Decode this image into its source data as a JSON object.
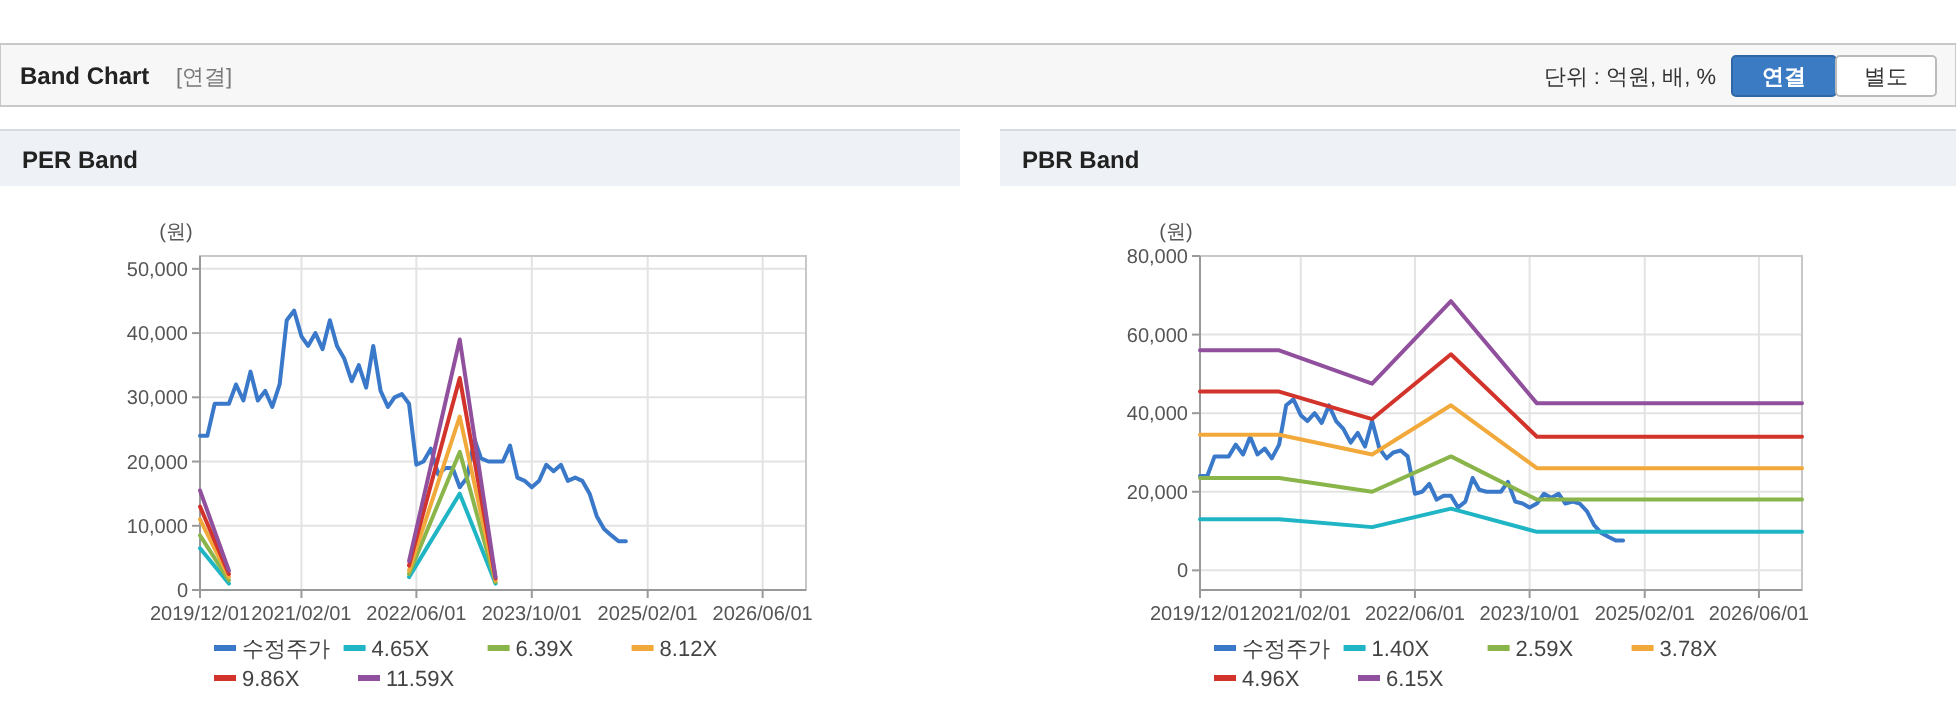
{
  "chart_data": [
    {
      "type": "line",
      "title": "PER Band",
      "ylabel": "(원)",
      "annotations": [
        "Band Chart",
        "[연결]",
        "단위 : 억원, 배, %",
        "연결",
        "별도"
      ],
      "xlim": [
        "2019-12-01",
        "2026-12-01"
      ],
      "xticks": [
        {
          "value": "2019-12-01",
          "label": "2019/12/01"
        },
        {
          "value": "2021-02-01",
          "label": "2021/02/01"
        },
        {
          "value": "2022-06-01",
          "label": "2022/06/01"
        },
        {
          "value": "2023-10-01",
          "label": "2023/10/01"
        },
        {
          "value": "2025-02-01",
          "label": "2025/02/01"
        },
        {
          "value": "2026-06-01",
          "label": "2026/06/01"
        }
      ],
      "ylim": [
        0,
        52000
      ],
      "yticks": [
        {
          "value": 0,
          "label": "0"
        },
        {
          "value": 10000,
          "label": "10,000"
        },
        {
          "value": 20000,
          "label": "20,000"
        },
        {
          "value": 30000,
          "label": "30,000"
        },
        {
          "value": 40000,
          "label": "40,000"
        },
        {
          "value": 50000,
          "label": "50,000"
        }
      ],
      "grid": true,
      "legend": "bottom",
      "marker": "none",
      "line_style": "solid",
      "series": [
        {
          "name": "수정주가",
          "color": "#3a78c9",
          "x": [
            "2019-12",
            "2020-01",
            "2020-02",
            "2020-03",
            "2020-04",
            "2020-05",
            "2020-06",
            "2020-07",
            "2020-08",
            "2020-09",
            "2020-10",
            "2020-11",
            "2020-12",
            "2021-01",
            "2021-02",
            "2021-03",
            "2021-04",
            "2021-05",
            "2021-06",
            "2021-07",
            "2021-08",
            "2021-09",
            "2021-10",
            "2021-11",
            "2021-12",
            "2022-01",
            "2022-02",
            "2022-03",
            "2022-04",
            "2022-05",
            "2022-06",
            "2022-07",
            "2022-08",
            "2022-09",
            "2022-10",
            "2022-11",
            "2022-12",
            "2023-01",
            "2023-02",
            "2023-03",
            "2023-04",
            "2023-05",
            "2023-06",
            "2023-07",
            "2023-08",
            "2023-09",
            "2023-10",
            "2023-11",
            "2023-12",
            "2024-01",
            "2024-02",
            "2024-03",
            "2024-04",
            "2024-05",
            "2024-06",
            "2024-07",
            "2024-08",
            "2024-09",
            "2024-10",
            "2024-11"
          ],
          "values": [
            24000,
            24000,
            29000,
            29000,
            29000,
            32000,
            29500,
            34000,
            29500,
            31000,
            28500,
            32000,
            42000,
            43500,
            39500,
            38000,
            40000,
            37500,
            42000,
            38000,
            36000,
            32500,
            35000,
            31500,
            38000,
            31000,
            28500,
            30000,
            30500,
            29000,
            19500,
            20000,
            22000,
            18000,
            19000,
            19000,
            16000,
            17500,
            23500,
            20500,
            20000,
            20000,
            20000,
            22500,
            17500,
            17000,
            16000,
            17000,
            19500,
            18500,
            19500,
            17000,
            17500,
            17000,
            15000,
            11500,
            9500,
            8500,
            7600,
            7600
          ]
        },
        {
          "name": "4.65X",
          "color": "#1fb5c4",
          "x": [
            "2019-12",
            "2020-04",
            "2020-05",
            "2022-05",
            "2022-12",
            "2023-05"
          ],
          "values": [
            6500,
            1000,
            null,
            2000,
            15000,
            1000
          ]
        },
        {
          "name": "6.39X",
          "color": "#8ab54a",
          "x": [
            "2019-12",
            "2020-04",
            "2020-05",
            "2022-05",
            "2022-12",
            "2023-05"
          ],
          "values": [
            8500,
            1500,
            null,
            2500,
            21500,
            1200
          ]
        },
        {
          "name": "8.12X",
          "color": "#f2a93b",
          "x": [
            "2019-12",
            "2020-04",
            "2020-05",
            "2022-05",
            "2022-12",
            "2023-05"
          ],
          "values": [
            11000,
            2000,
            null,
            3000,
            27000,
            1500
          ]
        },
        {
          "name": "9.86X",
          "color": "#d2332b",
          "x": [
            "2019-12",
            "2020-04",
            "2020-05",
            "2022-05",
            "2022-12",
            "2023-05"
          ],
          "values": [
            13000,
            2500,
            null,
            3800,
            33000,
            1800
          ]
        },
        {
          "name": "11.59X",
          "color": "#91509d",
          "x": [
            "2019-12",
            "2020-04",
            "2020-05",
            "2022-05",
            "2022-12",
            "2023-05"
          ],
          "values": [
            15500,
            3000,
            null,
            4500,
            39000,
            2000
          ]
        }
      ]
    },
    {
      "type": "line",
      "title": "PBR Band",
      "ylabel": "(원)",
      "xlim": [
        "2019-12-01",
        "2026-12-01"
      ],
      "xticks": [
        {
          "value": "2019-12-01",
          "label": "2019/12/01"
        },
        {
          "value": "2021-02-01",
          "label": "2021/02/01"
        },
        {
          "value": "2022-06-01",
          "label": "2022/06/01"
        },
        {
          "value": "2023-10-01",
          "label": "2023/10/01"
        },
        {
          "value": "2025-02-01",
          "label": "2025/02/01"
        },
        {
          "value": "2026-06-01",
          "label": "2026/06/01"
        }
      ],
      "ylim": [
        -5000,
        80000
      ],
      "yticks": [
        {
          "value": 0,
          "label": "0"
        },
        {
          "value": 20000,
          "label": "20,000"
        },
        {
          "value": 40000,
          "label": "40,000"
        },
        {
          "value": 60000,
          "label": "60,000"
        },
        {
          "value": 80000,
          "label": "80,000"
        }
      ],
      "grid": true,
      "legend": "bottom",
      "marker": "none",
      "line_style": "solid",
      "series": [
        {
          "name": "수정주가",
          "color": "#3a78c9",
          "x": [
            "2019-12",
            "2020-01",
            "2020-02",
            "2020-03",
            "2020-04",
            "2020-05",
            "2020-06",
            "2020-07",
            "2020-08",
            "2020-09",
            "2020-10",
            "2020-11",
            "2020-12",
            "2021-01",
            "2021-02",
            "2021-03",
            "2021-04",
            "2021-05",
            "2021-06",
            "2021-07",
            "2021-08",
            "2021-09",
            "2021-10",
            "2021-11",
            "2021-12",
            "2022-01",
            "2022-02",
            "2022-03",
            "2022-04",
            "2022-05",
            "2022-06",
            "2022-07",
            "2022-08",
            "2022-09",
            "2022-10",
            "2022-11",
            "2022-12",
            "2023-01",
            "2023-02",
            "2023-03",
            "2023-04",
            "2023-05",
            "2023-06",
            "2023-07",
            "2023-08",
            "2023-09",
            "2023-10",
            "2023-11",
            "2023-12",
            "2024-01",
            "2024-02",
            "2024-03",
            "2024-04",
            "2024-05",
            "2024-06",
            "2024-07",
            "2024-08",
            "2024-09",
            "2024-10",
            "2024-11"
          ],
          "values": [
            24000,
            24000,
            29000,
            29000,
            29000,
            32000,
            29500,
            34000,
            29500,
            31000,
            28500,
            32000,
            42000,
            43500,
            39500,
            38000,
            40000,
            37500,
            42000,
            38000,
            36000,
            32500,
            35000,
            31500,
            38000,
            31000,
            28500,
            30000,
            30500,
            29000,
            19500,
            20000,
            22000,
            18000,
            19000,
            19000,
            16000,
            17500,
            23500,
            20500,
            20000,
            20000,
            20000,
            22500,
            17500,
            17000,
            16000,
            17000,
            19500,
            18500,
            19500,
            17000,
            17500,
            17000,
            15000,
            11500,
            9500,
            8500,
            7600,
            7600
          ]
        },
        {
          "name": "1.40X",
          "color": "#1fb5c4",
          "x": [
            "2019-12",
            "2020-11",
            "2021-12",
            "2022-11",
            "2023-11",
            "2026-12"
          ],
          "values": [
            13000,
            13000,
            11000,
            15700,
            9800,
            9800
          ]
        },
        {
          "name": "2.59X",
          "color": "#8ab54a",
          "x": [
            "2019-12",
            "2020-11",
            "2021-12",
            "2022-11",
            "2023-11",
            "2026-12"
          ],
          "values": [
            23500,
            23500,
            20000,
            29000,
            18000,
            18000
          ]
        },
        {
          "name": "3.78X",
          "color": "#f2a93b",
          "x": [
            "2019-12",
            "2020-11",
            "2021-12",
            "2022-11",
            "2023-11",
            "2026-12"
          ],
          "values": [
            34500,
            34500,
            29500,
            42000,
            26000,
            26000
          ]
        },
        {
          "name": "4.96X",
          "color": "#d2332b",
          "x": [
            "2019-12",
            "2020-11",
            "2021-12",
            "2022-11",
            "2023-11",
            "2026-12"
          ],
          "values": [
            45500,
            45500,
            38500,
            55000,
            34000,
            34000
          ]
        },
        {
          "name": "6.15X",
          "color": "#91509d",
          "x": [
            "2019-12",
            "2020-11",
            "2021-12",
            "2022-11",
            "2023-11",
            "2026-12"
          ],
          "values": [
            56000,
            56000,
            47500,
            68500,
            42500,
            42500
          ]
        }
      ]
    }
  ]
}
